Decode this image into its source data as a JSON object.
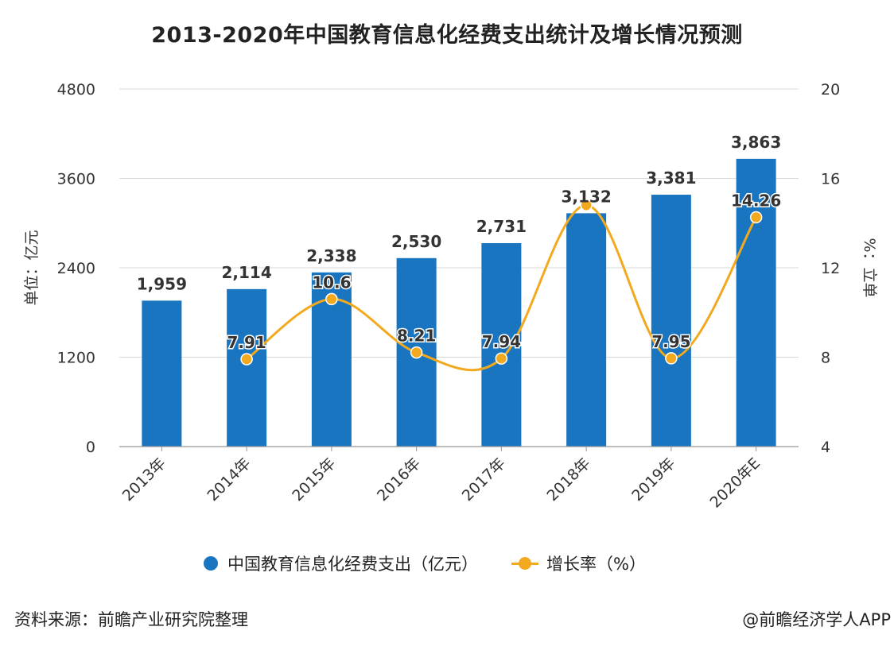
{
  "title": "2013-2020年中国教育信息化经费支出统计及增长情况预测",
  "source": "资料来源：前瞻产业研究院整理",
  "credit": "@前瞻经济学人APP",
  "colors": {
    "bar": "#1a75c0",
    "line": "#f2a91e",
    "grid": "#d9d9d9",
    "axis": "#999999"
  },
  "chart_data": {
    "type": "bar",
    "categories": [
      "2013年",
      "2014年",
      "2015年",
      "2016年",
      "2017年",
      "2018年",
      "2019年",
      "2020年E"
    ],
    "ylabel": "单位：亿元",
    "y2label": "%：立单",
    "ylim": [
      0,
      4800
    ],
    "yticks": [
      0,
      1200,
      2400,
      3600,
      4800
    ],
    "y2lim": [
      4,
      20
    ],
    "y2ticks": [
      4,
      8,
      12,
      16,
      20
    ],
    "grid": true,
    "legend_position": "bottom",
    "series": [
      {
        "name": "中国教育信息化经费支出（亿元）",
        "type": "bar",
        "axis": "left",
        "values": [
          1959,
          2114,
          2338,
          2530,
          2731,
          3132,
          3381,
          3863
        ],
        "labels": [
          "1,959",
          "2,114",
          "2,338",
          "2,530",
          "2,731",
          "3,132",
          "3,381",
          "3,863"
        ]
      },
      {
        "name": "增长率（%）",
        "type": "line",
        "axis": "right",
        "smooth": true,
        "values": [
          null,
          7.91,
          10.6,
          8.21,
          7.94,
          14.8,
          7.95,
          14.26
        ],
        "labels": [
          null,
          "7.91",
          "10.6",
          "8.21",
          "7.94",
          null,
          "7.95",
          "14.26"
        ]
      }
    ]
  }
}
